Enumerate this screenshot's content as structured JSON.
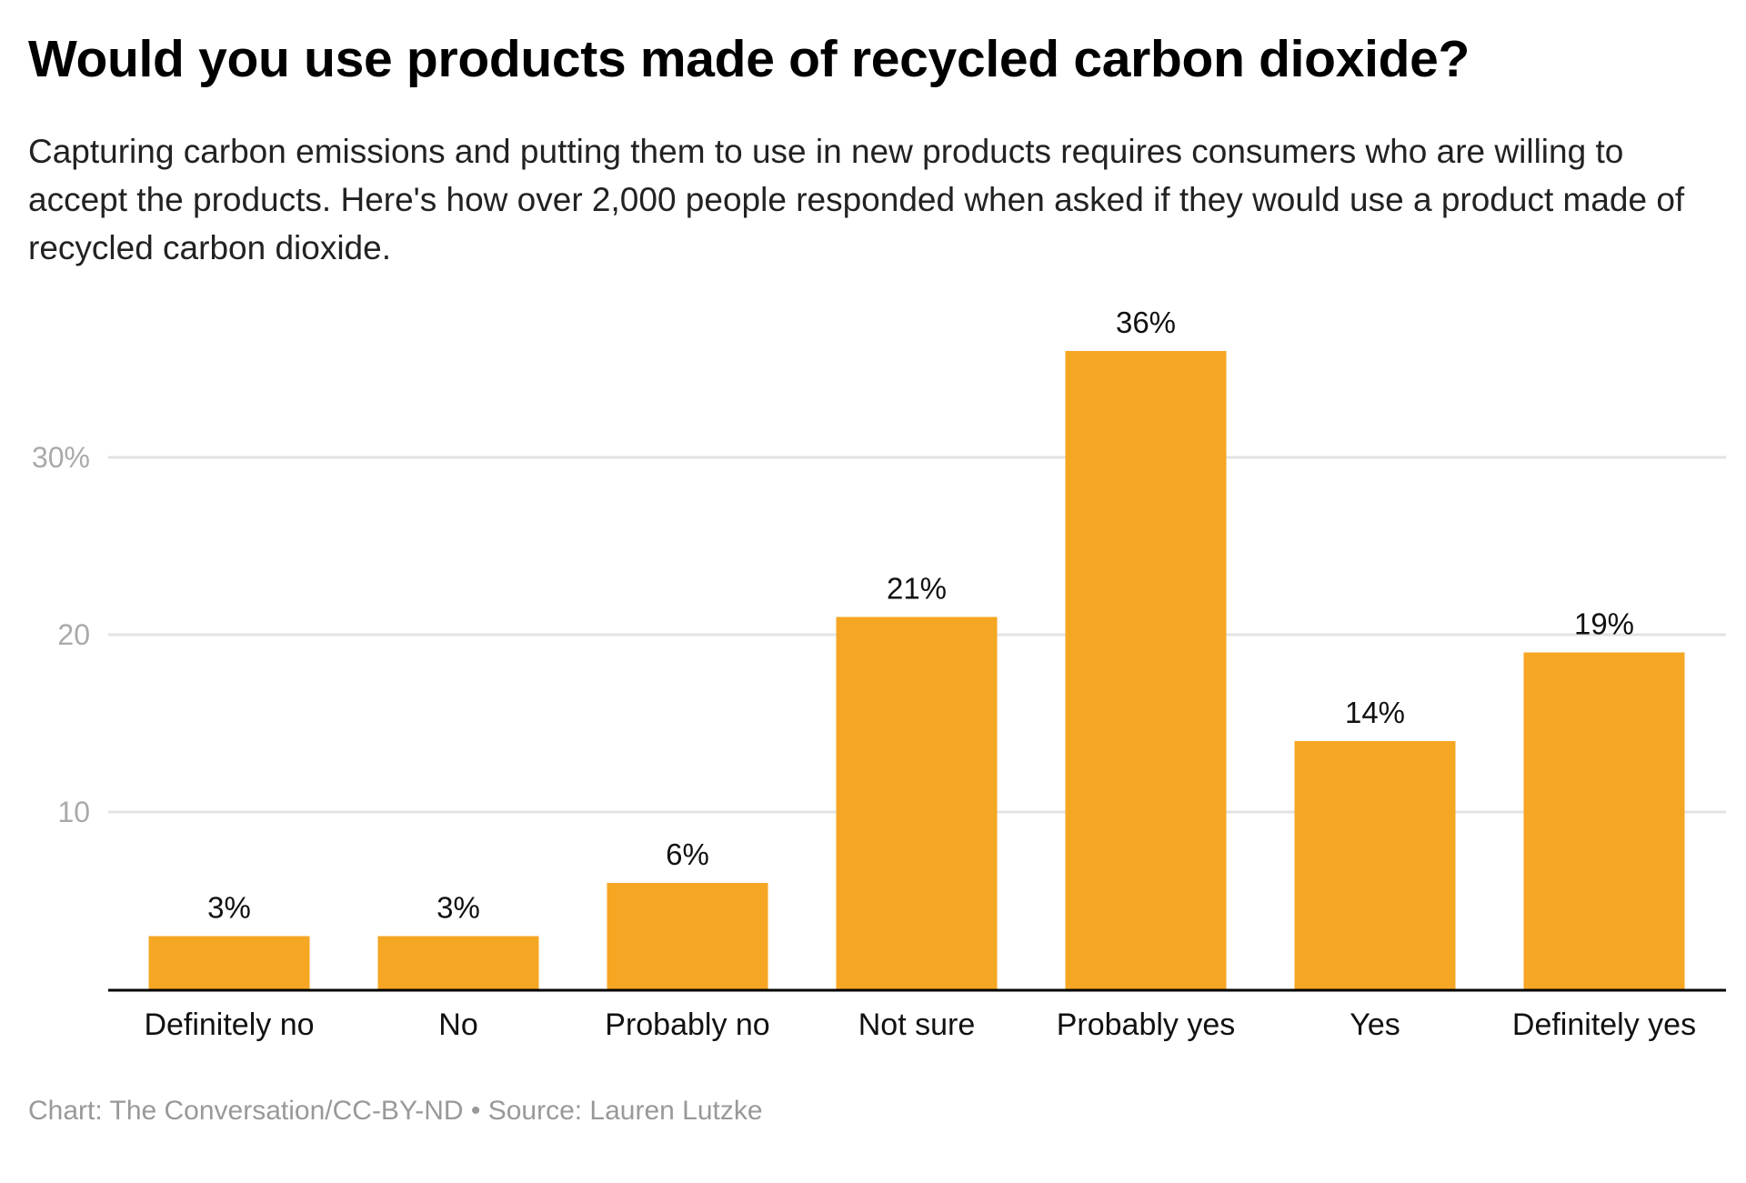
{
  "chart_data": {
    "type": "bar",
    "title": "Would you use products made of recycled carbon dioxide?",
    "subtitle": "Capturing carbon emissions and putting them to use in new products requires consumers who are willing to accept the products. Here's how over 2,000 people responded when asked if they would use a product made of recycled carbon dioxide.",
    "categories": [
      "Definitely no",
      "No",
      "Probably no",
      "Not sure",
      "Probably yes",
      "Yes",
      "Definitely yes"
    ],
    "values": [
      3,
      3,
      6,
      21,
      36,
      14,
      19
    ],
    "value_labels": [
      "3%",
      "3%",
      "6%",
      "21%",
      "36%",
      "14%",
      "19%"
    ],
    "xlabel": "",
    "ylabel": "",
    "ylim": [
      0,
      36
    ],
    "yticks": [
      10,
      20,
      30
    ],
    "ytick_labels": [
      "10",
      "20",
      "30%"
    ],
    "grid": true,
    "legend": "none",
    "bar_color": "#F5A623"
  },
  "footer": "Chart: The Conversation/CC-BY-ND • Source: Lauren Lutzke"
}
